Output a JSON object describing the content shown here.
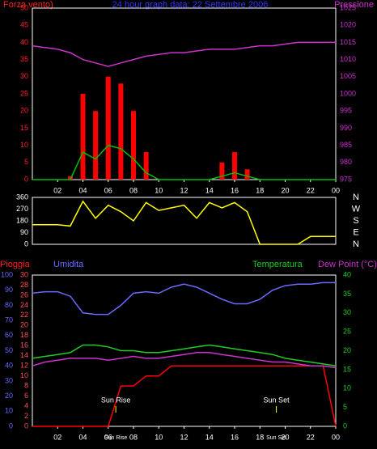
{
  "chart_data": [
    {
      "type": "wind",
      "title": "24 hour graph data: 22 Settembre 2006",
      "ylabel": "Forza vento)",
      "y2label": "Pressione",
      "x": [
        0,
        1,
        2,
        3,
        4,
        5,
        6,
        7,
        8,
        9,
        10,
        11,
        12,
        13,
        14,
        15,
        16,
        17,
        18,
        19,
        20,
        21,
        22,
        23,
        24
      ],
      "xlim": [
        0,
        24
      ],
      "xticks": [
        {
          "value": 2,
          "label": "02"
        },
        {
          "value": 4,
          "label": "04"
        },
        {
          "value": 6,
          "label": "06"
        },
        {
          "value": 8,
          "label": "08"
        },
        10,
        12,
        14,
        16,
        18,
        20,
        22,
        {
          "value": 24,
          "label": "00"
        }
      ],
      "ylim": [
        0,
        50
      ],
      "yticks": [
        0,
        5,
        10,
        15,
        20,
        25,
        30,
        35,
        40,
        45,
        50
      ],
      "y2lim": [
        975,
        1025
      ],
      "y2ticks": [
        975,
        980,
        985,
        990,
        995,
        1000,
        1005,
        1010,
        1015,
        1020,
        1025
      ],
      "series": [
        {
          "style": "bars",
          "color": "#ff0000",
          "values": [
            0,
            0,
            0,
            1,
            25,
            20,
            30,
            28,
            20,
            8,
            0,
            0,
            0,
            0,
            0,
            5,
            8,
            3,
            0,
            0,
            0,
            0,
            0,
            0,
            0
          ]
        },
        {
          "style": "line",
          "color": "#00c000",
          "values": [
            0,
            0,
            0,
            0,
            8,
            6,
            10,
            9,
            6,
            2,
            0,
            0,
            0,
            0,
            0,
            1,
            2,
            1,
            0,
            0,
            0,
            0,
            0,
            0,
            0
          ]
        },
        {
          "style": "line",
          "color": "#cc33cc",
          "axis": "y2",
          "values": [
            1014,
            1013.5,
            1013,
            1012,
            1010,
            1009,
            1008,
            1009,
            1010,
            1011,
            1011.5,
            1012,
            1012,
            1012.5,
            1013,
            1013,
            1013,
            1013.5,
            1014,
            1014,
            1014.5,
            1015,
            1015,
            1015,
            1015
          ]
        }
      ]
    },
    {
      "type": "direction",
      "x": [
        0,
        1,
        2,
        3,
        4,
        5,
        6,
        7,
        8,
        9,
        10,
        11,
        12,
        13,
        14,
        15,
        16,
        17,
        18,
        19,
        20,
        21,
        22,
        23,
        24
      ],
      "xlim": [
        0,
        24
      ],
      "ylim": [
        0,
        360
      ],
      "yticks": [
        0,
        90,
        180,
        270,
        360
      ],
      "compass": [
        "N",
        "E",
        "S",
        "W",
        "N"
      ],
      "series": [
        {
          "style": "line",
          "color": "#ffff00",
          "values": [
            150,
            150,
            150,
            140,
            330,
            200,
            300,
            250,
            180,
            320,
            260,
            280,
            300,
            200,
            320,
            280,
            320,
            250,
            0,
            0,
            0,
            0,
            60,
            60,
            60
          ]
        }
      ]
    },
    {
      "type": "weather",
      "ylabel": "Umidita",
      "y2label": "Pioggia",
      "y3label": "Temperatura",
      "y4label": "Dew Point (°C)",
      "x": [
        0,
        1,
        2,
        3,
        4,
        5,
        6,
        7,
        8,
        9,
        10,
        11,
        12,
        13,
        14,
        15,
        16,
        17,
        18,
        19,
        20,
        21,
        22,
        23,
        24
      ],
      "xlim": [
        0,
        24
      ],
      "xticks": [
        {
          "value": 2,
          "label": "02"
        },
        {
          "value": 4,
          "label": "04"
        },
        {
          "value": 6,
          "label": "06"
        },
        {
          "value": 8,
          "label": "08"
        },
        10,
        12,
        14,
        16,
        18,
        20,
        22,
        {
          "value": 24,
          "label": "00"
        }
      ],
      "ylim": [
        0,
        100
      ],
      "yticks": [
        0,
        10,
        20,
        30,
        40,
        50,
        60,
        70,
        80,
        90,
        100
      ],
      "y2lim": [
        0,
        30
      ],
      "y2ticks": [
        0,
        2,
        4,
        6,
        8,
        10,
        12,
        14,
        16,
        18,
        20,
        22,
        24,
        26,
        28,
        30
      ],
      "y3lim": [
        0,
        40
      ],
      "y3ticks": [
        0,
        5,
        10,
        15,
        20,
        25,
        30,
        35,
        40
      ],
      "annotations": [
        {
          "text": "Sun Rise",
          "x": 6.6
        },
        {
          "text": "Sun Set",
          "x": 19.3
        }
      ],
      "series": [
        {
          "color": "#6a6aff",
          "values": [
            88,
            89,
            89,
            86,
            75,
            74,
            74,
            80,
            88,
            89,
            88,
            92,
            94,
            92,
            88,
            84,
            81,
            81,
            84,
            90,
            93,
            94,
            94,
            95,
            95
          ]
        },
        {
          "color": "#ff0000",
          "axis": "y2",
          "values": [
            0,
            0,
            0,
            0,
            0,
            0,
            0,
            8,
            8,
            10,
            10,
            12,
            12,
            12,
            12,
            12,
            12,
            12,
            12,
            12,
            12,
            12,
            12,
            12,
            0
          ]
        },
        {
          "color": "#22cc22",
          "axis": "y3",
          "values": [
            18,
            18.5,
            19,
            19.5,
            21.5,
            21.5,
            21,
            20,
            20,
            19.5,
            19.5,
            20,
            20.5,
            21,
            21.5,
            21,
            20.5,
            20,
            19.5,
            19,
            18,
            17.5,
            17,
            16.5,
            16
          ]
        },
        {
          "color": "#cc33cc",
          "axis": "y3",
          "values": [
            16,
            17,
            17.5,
            18,
            18,
            18,
            17.5,
            18,
            18.5,
            18,
            18,
            18.5,
            19,
            19.5,
            19.5,
            19,
            18.5,
            18,
            17.5,
            17,
            17,
            16.5,
            16,
            16,
            15.5
          ]
        }
      ]
    }
  ]
}
